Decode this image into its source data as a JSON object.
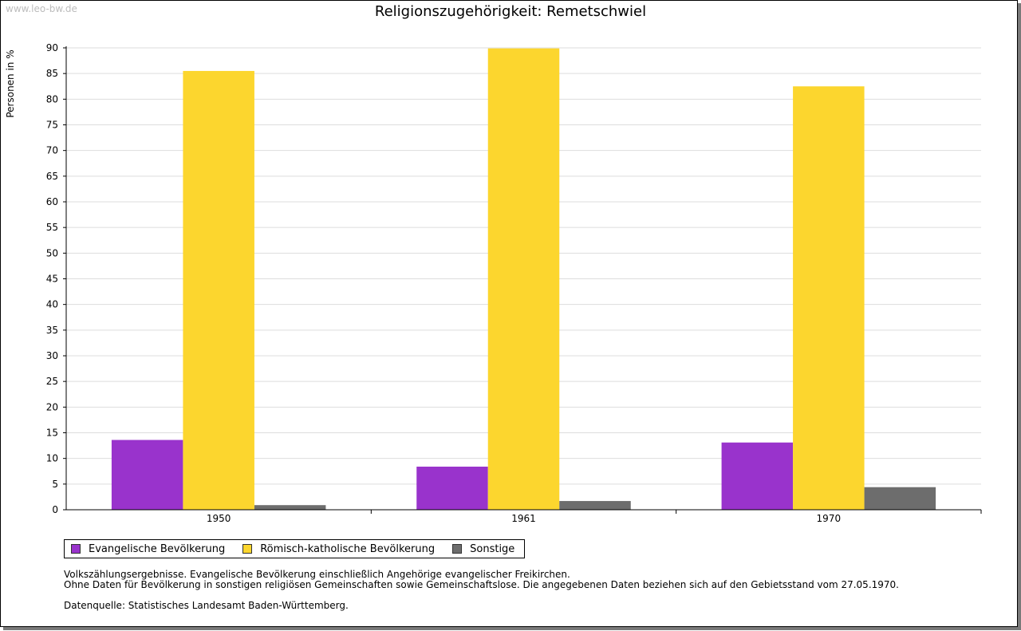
{
  "watermark": "www.leo-bw.de",
  "chart_data": {
    "type": "bar",
    "title": "Religionszugehörigkeit: Remetschwiel",
    "ylabel": "Personen in %",
    "xlabel": "",
    "categories": [
      "1950",
      "1961",
      "1970"
    ],
    "series": [
      {
        "name": "Evangelische Bevölkerung",
        "color": "#9933cc",
        "values": [
          13.6,
          8.4,
          13.1
        ]
      },
      {
        "name": "Römisch-katholische Bevölkerung",
        "color": "#fcd62e",
        "values": [
          85.5,
          89.9,
          82.5
        ]
      },
      {
        "name": "Sonstige",
        "color": "#6d6d6d",
        "values": [
          0.9,
          1.7,
          4.4
        ]
      }
    ],
    "ylim": [
      0,
      90
    ],
    "yticks": [
      "0",
      "5",
      "10",
      "15",
      "20",
      "25",
      "30",
      "35",
      "40",
      "45",
      "50",
      "55",
      "60",
      "65",
      "70",
      "75",
      "80",
      "85",
      "90"
    ],
    "grid": true,
    "legend": "bottom-left"
  },
  "notes": {
    "line1": "Volkszählungsergebnisse. Evangelische Bevölkerung einschließlich Angehörige evangelischer Freikirchen.",
    "line2": "Ohne Daten für Bevölkerung in sonstigen religiösen Gemeinschaften sowie Gemeinschaftslose. Die angegebenen Daten beziehen sich auf den Gebietsstand vom 27.05.1970.",
    "source": "Datenquelle: Statistisches Landesamt Baden-Württemberg."
  }
}
